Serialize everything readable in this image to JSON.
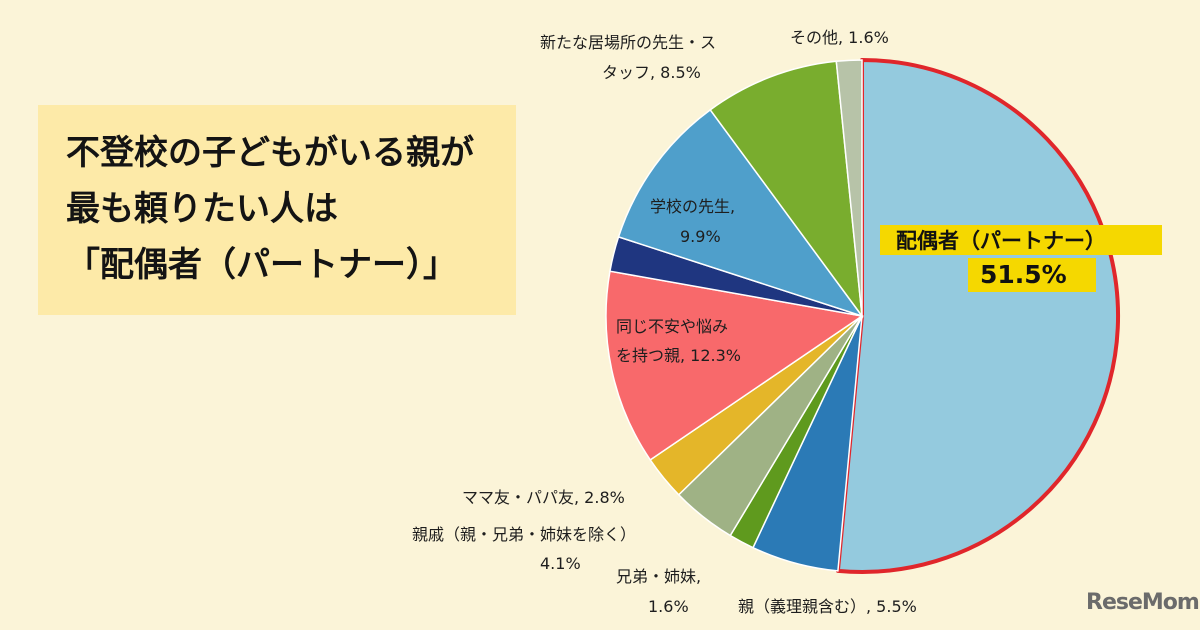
{
  "headline": {
    "line1": "不登校の子どもがいる親が",
    "line2": "最も頼りたい人は",
    "line3": "「配偶者（パートナー）」"
  },
  "logo": "ReseMom",
  "chart_data": {
    "type": "pie",
    "unit": "%",
    "slices": [
      {
        "label": "配偶者（パートナー）",
        "value": 51.5,
        "color": "#94cade",
        "value_text": "51.5%",
        "highlight": true
      },
      {
        "label": "親（義理親含む）",
        "value": 5.5,
        "color": "#2b7ab6",
        "value_text": "5.5%"
      },
      {
        "label": "兄弟・姉妹",
        "value": 1.6,
        "color": "#5f9a1e",
        "value_text": "1.6%"
      },
      {
        "label": "親戚（親・兄弟・姉妹を除く）",
        "value": 4.1,
        "color": "#9fb285",
        "value_text": "4.1%"
      },
      {
        "label": "ママ友・パパ友",
        "value": 2.8,
        "color": "#e4b629",
        "value_text": "2.8%"
      },
      {
        "label": "同じ不安や悩みを持つ親",
        "value": 12.3,
        "color": "#f8696b",
        "value_text": "12.3%"
      },
      {
        "label": "",
        "value": 2.2,
        "color": "#1f3680",
        "value_text": ""
      },
      {
        "label": "学校の先生",
        "value": 9.9,
        "color": "#4f9fcb",
        "value_text": "9.9%"
      },
      {
        "label": "新たな居場所の先生・スタッフ",
        "value": 8.5,
        "color": "#79ad2e",
        "value_text": "8.5%"
      },
      {
        "label": "その他",
        "value": 1.6,
        "color": "#b7c3a8",
        "value_text": "1.6%"
      }
    ],
    "label_text": {
      "partner_name": "配偶者（パートナー）",
      "partner_pct": "51.5%",
      "parents": "親（義理親含む）, 5.5%",
      "siblings_1": "兄弟・姉妹,",
      "siblings_2": "1.6%",
      "relatives_1": "親戚（親・兄弟・姉妹を除く）",
      "relatives_2": "4.1%",
      "mamatomo": "ママ友・パパ友, 2.8%",
      "sameparents_1": "同じ不安や悩み",
      "sameparents_2": "を持つ親, 12.3%",
      "teacher_1": "学校の先生,",
      "teacher_2": "9.9%",
      "newplace_1": "新たな居場所の先生・ス",
      "newplace_2": "タッフ, 8.5%",
      "other": "その他, 1.6%"
    }
  }
}
